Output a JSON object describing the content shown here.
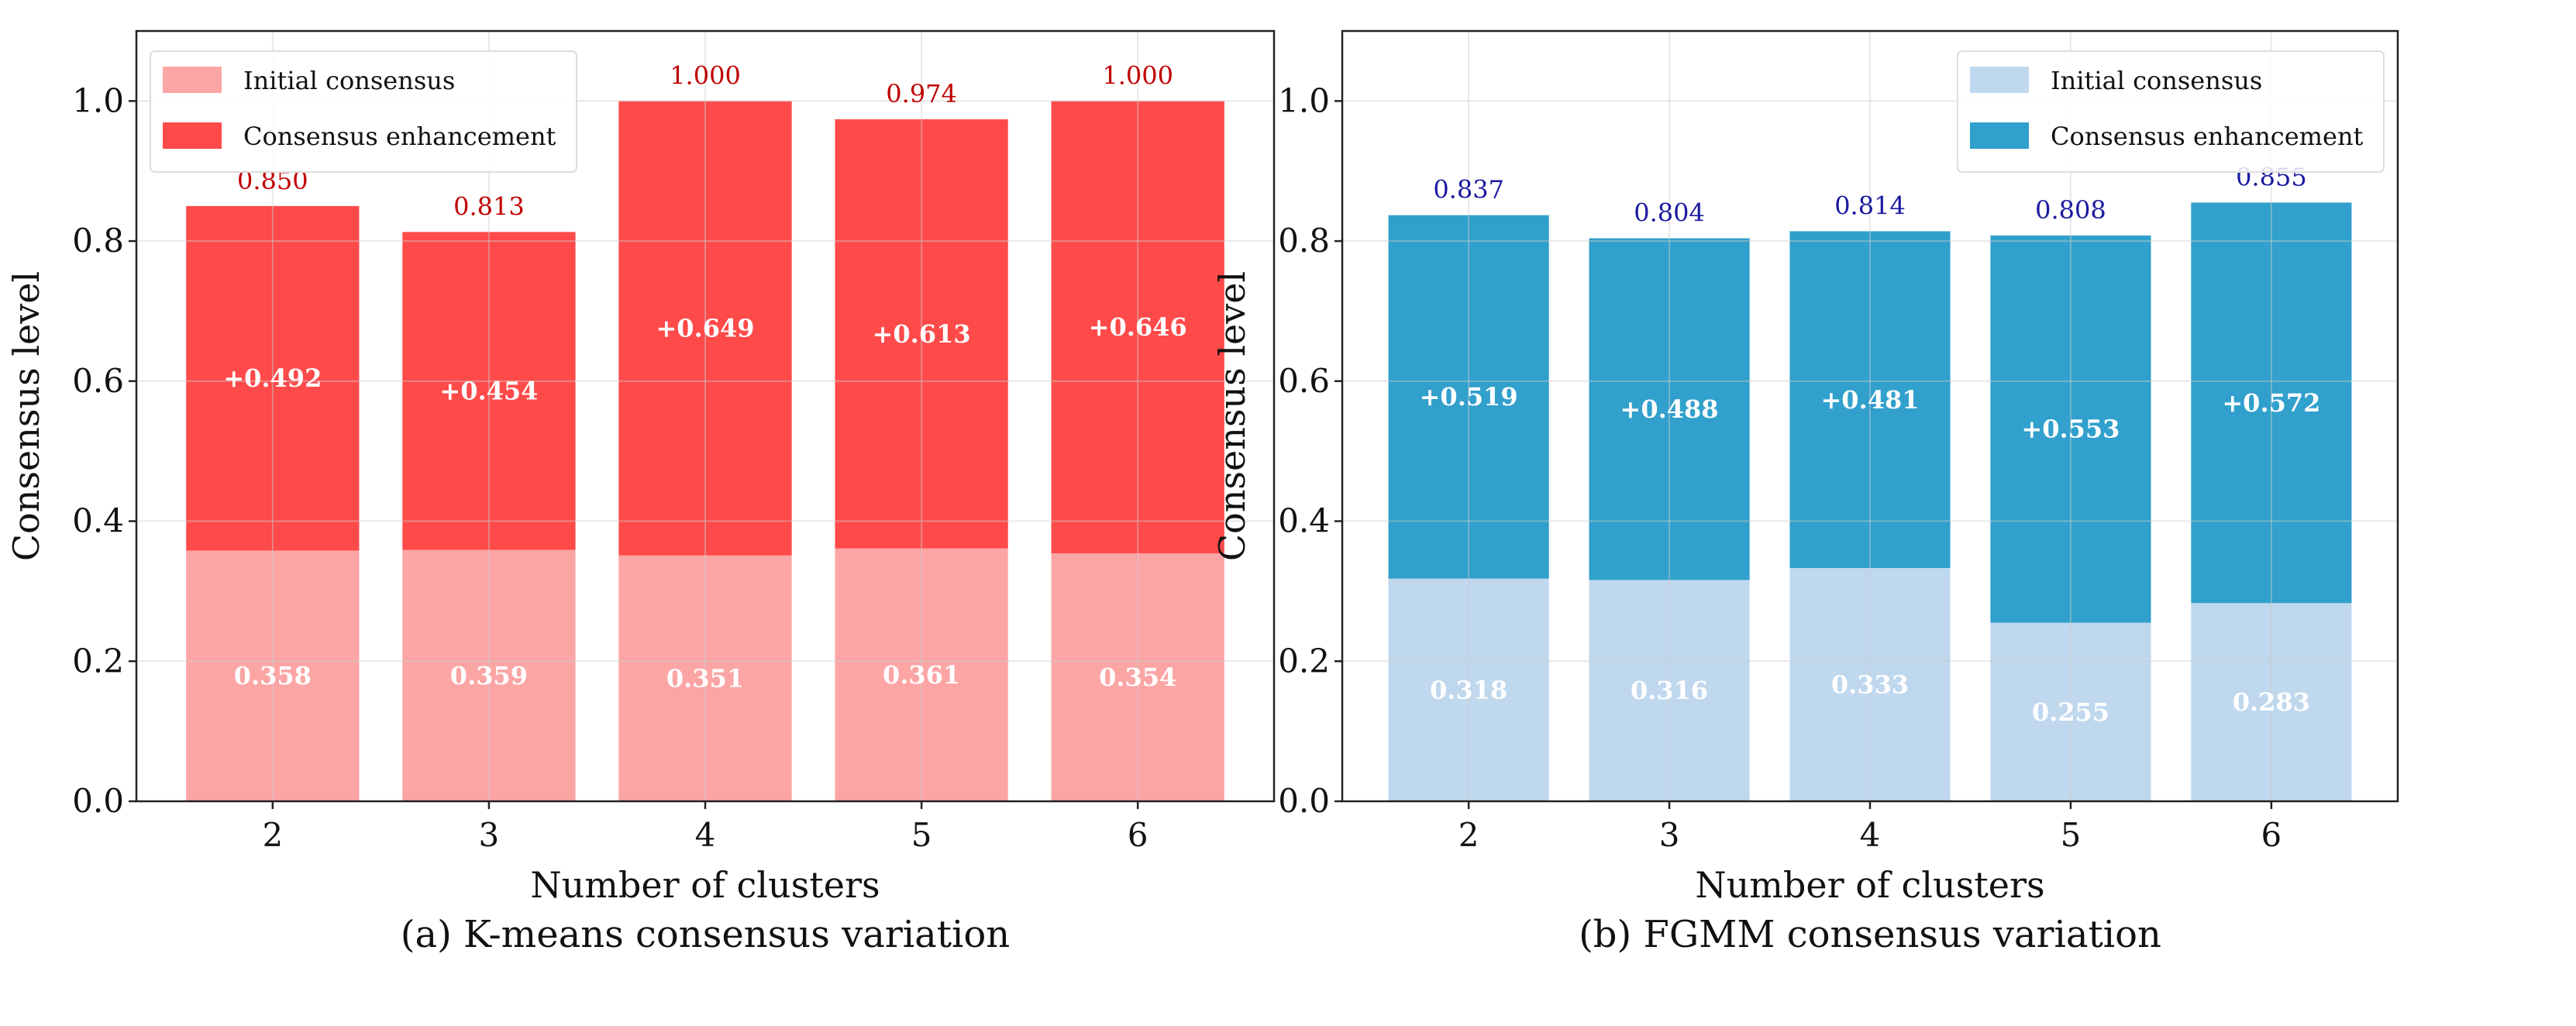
{
  "chart_data": [
    {
      "type": "bar",
      "stacked": true,
      "caption": "(a) K-means consensus variation",
      "xlabel": "Number of clusters",
      "ylabel": "Consensus level",
      "categories": [
        "2",
        "3",
        "4",
        "5",
        "6"
      ],
      "ylim": [
        0,
        1.1
      ],
      "yticks": [
        "0.0",
        "0.2",
        "0.4",
        "0.6",
        "0.8",
        "1.0"
      ],
      "grid": true,
      "legend_position": "top-left",
      "series": [
        {
          "name": "Initial consensus",
          "values": [
            0.358,
            0.359,
            0.351,
            0.361,
            0.354
          ],
          "color": "#fca5a5",
          "labels": [
            "0.358",
            "0.359",
            "0.351",
            "0.361",
            "0.354"
          ]
        },
        {
          "name": "Consensus enhancement",
          "values": [
            0.492,
            0.454,
            0.649,
            0.613,
            0.646
          ],
          "color": "#ff4a4a",
          "labels": [
            "+0.492",
            "+0.454",
            "+0.649",
            "+0.613",
            "+0.646"
          ]
        }
      ],
      "totals": [
        "0.850",
        "0.813",
        "1.000",
        "0.974",
        "1.000"
      ],
      "total_color": "#c00000"
    },
    {
      "type": "bar",
      "stacked": true,
      "caption": "(b) FGMM consensus variation",
      "xlabel": "Number of clusters",
      "ylabel": "Consensus level",
      "categories": [
        "2",
        "3",
        "4",
        "5",
        "6"
      ],
      "ylim": [
        0,
        1.1
      ],
      "yticks": [
        "0.0",
        "0.2",
        "0.4",
        "0.6",
        "0.8",
        "1.0"
      ],
      "grid": true,
      "legend_position": "top-right",
      "series": [
        {
          "name": "Initial consensus",
          "values": [
            0.318,
            0.316,
            0.333,
            0.255,
            0.283
          ],
          "color": "#c0d8ee",
          "labels": [
            "0.318",
            "0.316",
            "0.333",
            "0.255",
            "0.283"
          ]
        },
        {
          "name": "Consensus enhancement",
          "values": [
            0.519,
            0.488,
            0.481,
            0.553,
            0.572
          ],
          "color": "#31a0cc",
          "labels": [
            "+0.519",
            "+0.488",
            "+0.481",
            "+0.553",
            "+0.572"
          ]
        }
      ],
      "totals": [
        "0.837",
        "0.804",
        "0.814",
        "0.808",
        "0.855"
      ],
      "total_color": "#1a1aa0"
    }
  ]
}
